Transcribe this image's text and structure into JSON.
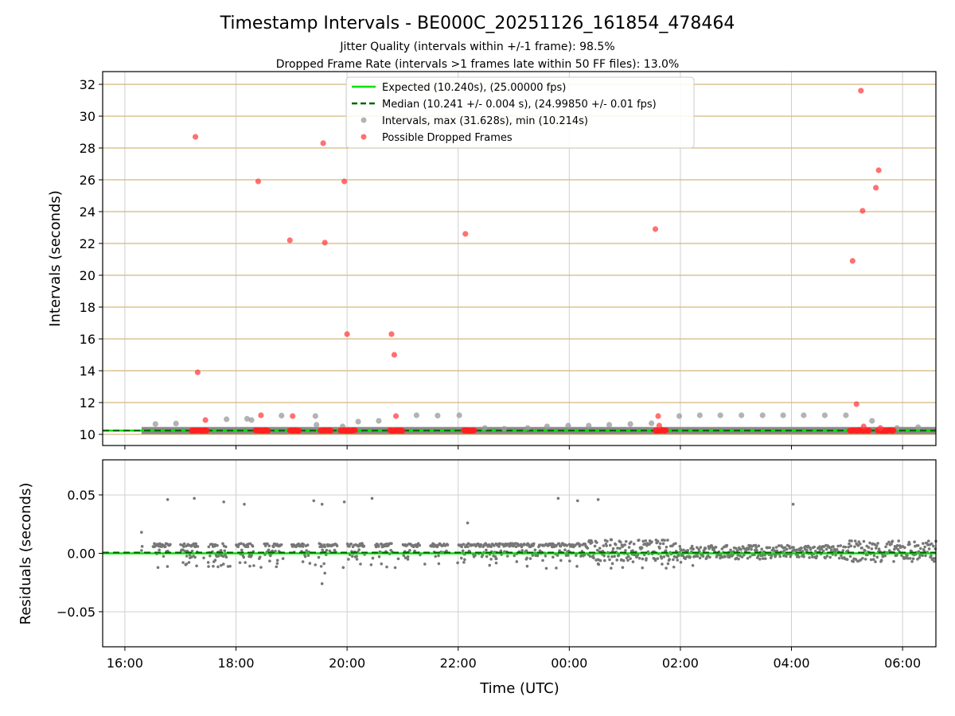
{
  "chart_data": [
    {
      "type": "scatter",
      "title": "Timestamp Intervals - BE000C_20251126_161854_478464",
      "subtitle_lines": [
        "Jitter Quality (intervals within +/-1 frame): 98.5%",
        "Dropped Frame Rate (intervals >1 frames late within 50 FF files): 13.0%"
      ],
      "xlabel": "",
      "ylabel": "Intervals (seconds)",
      "xlim_hours": [
        15.6,
        30.6
      ],
      "ylim": [
        9.3,
        32.8
      ],
      "yticks": [
        "10",
        "12",
        "14",
        "16",
        "18",
        "20",
        "22",
        "24",
        "26",
        "28",
        "30",
        "32"
      ],
      "hgrid_color": "#d4b87a",
      "legend_position": "upper center",
      "legend": [
        "Expected (10.240s), (25.00000 fps)",
        "Median (10.241 +/- 0.004 s), (24.99850 +/- 0.01 fps)",
        "Intervals, max (31.628s), min (10.214s)",
        "Possible Dropped Frames"
      ],
      "series": [
        {
          "name": "Expected (10.240s), (25.00000 fps)",
          "style": "solid-line",
          "color": "#00e000",
          "y": 10.24
        },
        {
          "name": "Median (10.241 +/- 0.004 s), (24.99850 +/- 0.01 fps)",
          "style": "dashed-line",
          "color": "#006400",
          "y": 10.241
        },
        {
          "name": "Intervals, max (31.628s), min (10.214s)",
          "color": "#888888",
          "baseline_band": {
            "x_start_hours": 16.3,
            "x_end_hours": 30.6,
            "y": 10.24
          },
          "points": [
            [
              16.55,
              10.65
            ],
            [
              16.92,
              10.68
            ],
            [
              17.83,
              10.95
            ],
            [
              18.2,
              10.98
            ],
            [
              18.28,
              10.9
            ],
            [
              18.82,
              11.18
            ],
            [
              19.43,
              11.15
            ],
            [
              19.45,
              10.6
            ],
            [
              19.92,
              10.5
            ],
            [
              20.2,
              10.8
            ],
            [
              20.57,
              10.85
            ],
            [
              21.25,
              11.2
            ],
            [
              21.63,
              11.18
            ],
            [
              22.02,
              11.2
            ],
            [
              22.48,
              10.4
            ],
            [
              22.83,
              10.35
            ],
            [
              23.25,
              10.4
            ],
            [
              23.6,
              10.5
            ],
            [
              23.98,
              10.55
            ],
            [
              24.35,
              10.55
            ],
            [
              24.72,
              10.6
            ],
            [
              25.1,
              10.65
            ],
            [
              25.48,
              10.7
            ],
            [
              25.98,
              11.15
            ],
            [
              26.35,
              11.2
            ],
            [
              26.72,
              11.2
            ],
            [
              27.1,
              11.2
            ],
            [
              27.48,
              11.2
            ],
            [
              27.85,
              11.2
            ],
            [
              28.22,
              11.2
            ],
            [
              28.6,
              11.2
            ],
            [
              28.98,
              11.2
            ],
            [
              29.45,
              10.85
            ],
            [
              29.9,
              10.4
            ],
            [
              30.28,
              10.45
            ]
          ]
        },
        {
          "name": "Possible Dropped Frames",
          "color": "#ff4040",
          "clusters_hours": [
            [
              17.2,
              17.48
            ],
            [
              18.35,
              18.58
            ],
            [
              18.97,
              19.15
            ],
            [
              19.52,
              19.72
            ],
            [
              19.88,
              20.15
            ],
            [
              20.77,
              21.0
            ],
            [
              22.1,
              22.3
            ],
            [
              25.55,
              25.75
            ],
            [
              29.05,
              29.4
            ],
            [
              29.55,
              29.85
            ]
          ],
          "points": [
            [
              17.27,
              28.7
            ],
            [
              17.31,
              13.9
            ],
            [
              17.45,
              10.9
            ],
            [
              18.4,
              25.9
            ],
            [
              18.45,
              11.2
            ],
            [
              18.97,
              22.2
            ],
            [
              19.02,
              11.15
            ],
            [
              19.57,
              28.3
            ],
            [
              19.6,
              22.05
            ],
            [
              19.95,
              25.9
            ],
            [
              20.0,
              16.3
            ],
            [
              20.8,
              16.3
            ],
            [
              20.85,
              15.0
            ],
            [
              20.88,
              11.15
            ],
            [
              22.13,
              22.6
            ],
            [
              25.55,
              22.9
            ],
            [
              25.6,
              11.15
            ],
            [
              25.62,
              10.55
            ],
            [
              29.1,
              20.9
            ],
            [
              29.17,
              11.9
            ],
            [
              29.25,
              31.6
            ],
            [
              29.28,
              24.05
            ],
            [
              29.3,
              10.5
            ],
            [
              29.52,
              25.5
            ],
            [
              29.57,
              26.6
            ],
            [
              29.6,
              10.4
            ]
          ]
        }
      ]
    },
    {
      "type": "scatter",
      "title": "",
      "xlabel": "Time (UTC)",
      "ylabel": "Residuals (seconds)",
      "xlim_hours": [
        15.6,
        30.6
      ],
      "ylim": [
        -0.08,
        0.08
      ],
      "xticks": [
        "16:00",
        "18:00",
        "20:00",
        "22:00",
        "00:00",
        "02:00",
        "04:00",
        "06:00"
      ],
      "xtick_hours": [
        16,
        18,
        20,
        22,
        24,
        26,
        28,
        30
      ],
      "yticks": [
        "−0.05",
        "0.00",
        "0.05"
      ],
      "ytick_values": [
        -0.05,
        0.0,
        0.05
      ],
      "grid": true,
      "series": [
        {
          "name": "",
          "style": "solid-line",
          "color": "#00e000",
          "y": 0.0
        },
        {
          "name": "",
          "style": "dashed-line",
          "color": "#006400",
          "y": 0.0007
        },
        {
          "name": "",
          "color": "#777777",
          "outliers": [
            [
              16.3,
              0.018
            ],
            [
              16.77,
              0.046
            ],
            [
              17.25,
              0.047
            ],
            [
              17.78,
              0.044
            ],
            [
              18.15,
              0.042
            ],
            [
              19.4,
              0.045
            ],
            [
              19.55,
              0.042
            ],
            [
              19.95,
              0.044
            ],
            [
              20.45,
              0.047
            ],
            [
              22.17,
              0.026
            ],
            [
              23.8,
              0.047
            ],
            [
              24.15,
              0.045
            ],
            [
              24.52,
              0.046
            ],
            [
              28.03,
              0.042
            ],
            [
              19.55,
              -0.026
            ],
            [
              19.6,
              -0.017
            ],
            [
              18.45,
              -0.012
            ],
            [
              18.25,
              -0.011
            ]
          ]
        }
      ]
    }
  ]
}
